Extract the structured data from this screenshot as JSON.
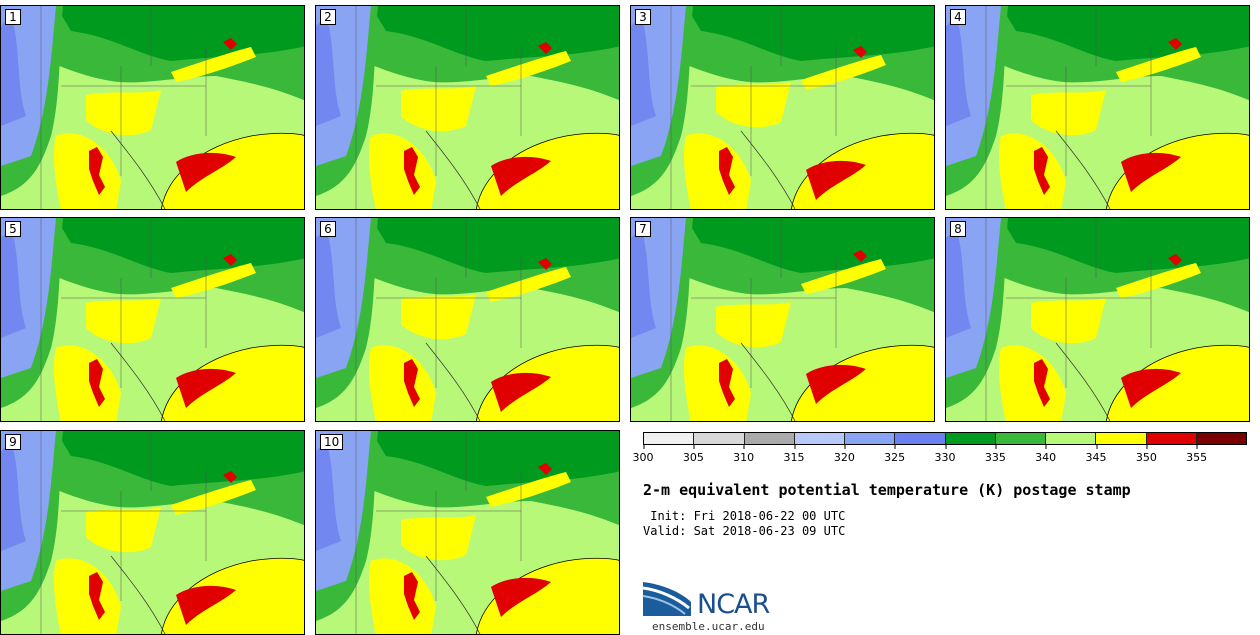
{
  "panels": [
    {
      "label": "1"
    },
    {
      "label": "2"
    },
    {
      "label": "3"
    },
    {
      "label": "4"
    },
    {
      "label": "5"
    },
    {
      "label": "6"
    },
    {
      "label": "7"
    },
    {
      "label": "8"
    },
    {
      "label": "9"
    },
    {
      "label": "10"
    }
  ],
  "colorbar": {
    "colors": [
      "#f0f0f0",
      "#d8d8d8",
      "#aaaaaa",
      "#b8c8f8",
      "#8aa4f4",
      "#6b80ee",
      "#009a1e",
      "#3ab83a",
      "#b8f878",
      "#ffff00",
      "#e00000",
      "#7a0000"
    ],
    "ticks": [
      "300",
      "305",
      "310",
      "315",
      "320",
      "325",
      "330",
      "335",
      "340",
      "345",
      "350",
      "355"
    ]
  },
  "title": "2-m equivalent potential temperature (K) postage stamp",
  "init": " Init: Fri 2018-06-22 00 UTC",
  "valid": "Valid: Sat 2018-06-23 09 UTC",
  "logo_text": "NCAR",
  "url": "ensemble.ucar.edu"
}
